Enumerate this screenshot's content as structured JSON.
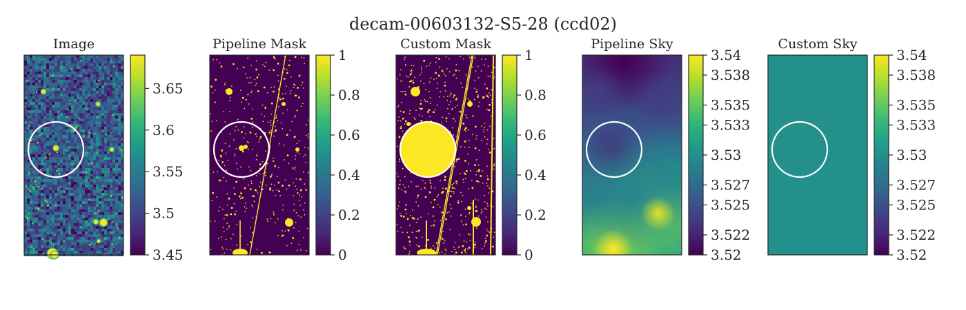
{
  "figure": {
    "title": "decam-00603132-S5-28 (ccd02)"
  },
  "colormap": "viridis",
  "colormap_stops": [
    "#440154",
    "#482878",
    "#3e4989",
    "#31688e",
    "#26828e",
    "#1f9e89",
    "#35b779",
    "#6ece58",
    "#b5de2b",
    "#fde725"
  ],
  "circle_color": "#ffffff",
  "chart_data": [
    {
      "type": "heatmap",
      "title": "Image",
      "content": "noisy sky image with stars",
      "colorbar": {
        "vmin": 3.45,
        "vmax": 3.69,
        "ticks": [
          "3.45",
          "3.5",
          "3.55",
          "3.6",
          "3.65"
        ]
      },
      "grid": false
    },
    {
      "type": "heatmap",
      "title": "Pipeline Mask",
      "content": "binary mask (0/1) of detected sources and trails",
      "colorbar": {
        "vmin": 0,
        "vmax": 1,
        "ticks": [
          "0",
          "0.2",
          "0.4",
          "0.6",
          "0.8",
          "1"
        ]
      },
      "grid": false
    },
    {
      "type": "heatmap",
      "title": "Custom Mask",
      "content": "binary mask (0/1) with large masked circle",
      "colorbar": {
        "vmin": 0,
        "vmax": 1,
        "ticks": [
          "0",
          "0.2",
          "0.4",
          "0.6",
          "0.8",
          "1"
        ]
      },
      "grid": false
    },
    {
      "type": "heatmap",
      "title": "Pipeline Sky",
      "content": "smooth sky background model",
      "colorbar": {
        "vmin": 3.52,
        "vmax": 3.54,
        "ticks": [
          "3.52",
          "3.522",
          "3.525",
          "3.527",
          "3.53",
          "3.533",
          "3.535",
          "3.538",
          "3.54"
        ]
      },
      "grid": false
    },
    {
      "type": "heatmap",
      "title": "Custom Sky",
      "content": "constant sky background",
      "constant_value": 3.53,
      "colorbar": {
        "vmin": 3.52,
        "vmax": 3.54,
        "ticks": [
          "3.52",
          "3.522",
          "3.525",
          "3.527",
          "3.53",
          "3.533",
          "3.535",
          "3.538",
          "3.54"
        ]
      },
      "grid": false
    }
  ]
}
